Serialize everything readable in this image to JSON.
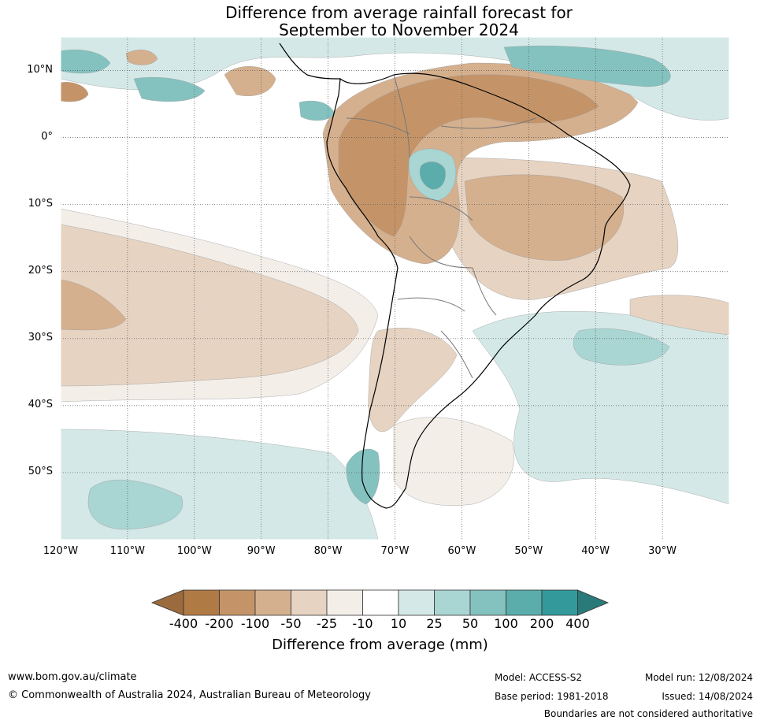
{
  "title_line1": "Difference from average rainfall forecast for",
  "title_line2": "September to November 2024",
  "map": {
    "extent_lon": [
      -120,
      -20
    ],
    "extent_lat": [
      -60,
      15
    ],
    "latitude_labels": [
      {
        "lat": 10,
        "label": "10°N"
      },
      {
        "lat": 0,
        "label": "0°"
      },
      {
        "lat": -10,
        "label": "10°S"
      },
      {
        "lat": -20,
        "label": "20°S"
      },
      {
        "lat": -30,
        "label": "30°S"
      },
      {
        "lat": -40,
        "label": "40°S"
      },
      {
        "lat": -50,
        "label": "50°S"
      }
    ],
    "longitude_labels": [
      {
        "lon": -120,
        "label": "120°W"
      },
      {
        "lon": -110,
        "label": "110°W"
      },
      {
        "lon": -100,
        "label": "100°W"
      },
      {
        "lon": -90,
        "label": "90°W"
      },
      {
        "lon": -80,
        "label": "80°W"
      },
      {
        "lon": -70,
        "label": "70°W"
      },
      {
        "lon": -60,
        "label": "60°W"
      },
      {
        "lon": -50,
        "label": "50°W"
      },
      {
        "lon": -40,
        "label": "40°W"
      },
      {
        "lon": -30,
        "label": "30°W"
      }
    ]
  },
  "colorbar": {
    "title": "Difference from average (mm)",
    "tick_labels": [
      "-400",
      "-200",
      "-100",
      "-50",
      "-25",
      "-10",
      "10",
      "25",
      "50",
      "100",
      "200",
      "400"
    ],
    "colors": [
      "#9b6a3d",
      "#b07a45",
      "#c49468",
      "#d5b08e",
      "#e6d3c2",
      "#f3eee8",
      "#ffffff",
      "#d4e9e7",
      "#a9d5d3",
      "#84c2c0",
      "#5aadab",
      "#33999a",
      "#2a7a7a"
    ]
  },
  "footer": {
    "website": "www.bom.gov.au/climate",
    "copyright": "© Commonwealth of Australia 2024, Australian Bureau of Meteorology",
    "model": "Model: ACCESS-S2",
    "base_period": "Base period: 1981-2018",
    "model_run": "Model run: 12/08/2024",
    "issued": "Issued: 14/08/2024",
    "disclaimer": "Boundaries are not considered authoritative"
  }
}
